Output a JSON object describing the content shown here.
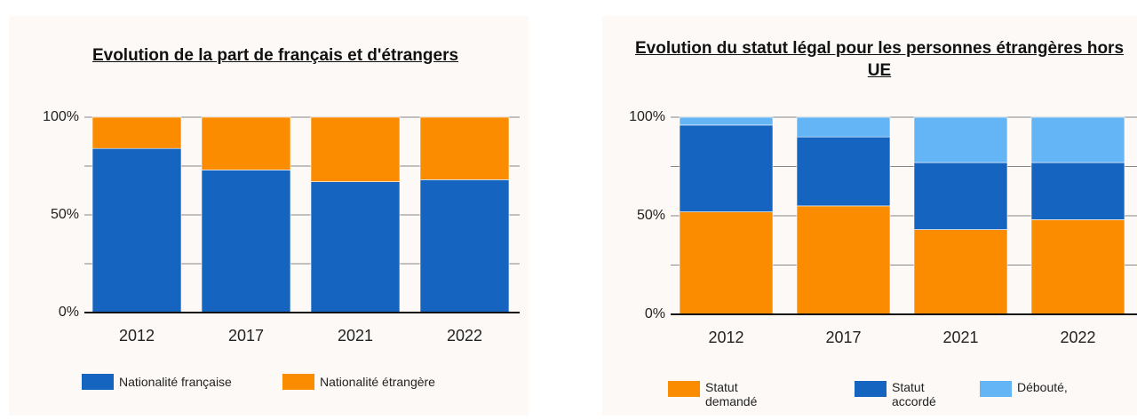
{
  "chart_data": [
    {
      "type": "stacked_bar",
      "title": "Evolution de la part de français et d'étrangers",
      "categories": [
        "2012",
        "2017",
        "2021",
        "2022"
      ],
      "series": [
        {
          "name": "Nationalité française",
          "color": "#1565c0",
          "values": [
            84,
            73,
            67,
            68
          ]
        },
        {
          "name": "Nationalité étrangère",
          "color": "#fb8c00",
          "values": [
            16,
            27,
            33,
            32
          ]
        }
      ],
      "ylim": [
        0,
        100
      ],
      "yticks": [
        {
          "value": 0,
          "label": "0%"
        },
        {
          "value": 50,
          "label": "50%"
        },
        {
          "value": 100,
          "label": "100%"
        }
      ],
      "minor_grid": [
        25,
        75
      ],
      "grid": true,
      "legend": "bottom"
    },
    {
      "type": "stacked_bar",
      "title": "Evolution du statut légal pour les personnes étrangères hors UE",
      "categories": [
        "2012",
        "2017",
        "2021",
        "2022"
      ],
      "series": [
        {
          "name": "Statut demandé",
          "color": "#fb8c00",
          "values": [
            52,
            55,
            43,
            48
          ]
        },
        {
          "name": "Statut accordé",
          "color": "#1565c0",
          "values": [
            44,
            35,
            34,
            29
          ]
        },
        {
          "name": "Débouté,",
          "color": "#64b5f6",
          "values": [
            4,
            10,
            23,
            23
          ]
        }
      ],
      "ylim": [
        0,
        100
      ],
      "yticks": [
        {
          "value": 0,
          "label": "0%"
        },
        {
          "value": 50,
          "label": "50%"
        },
        {
          "value": 100,
          "label": "100%"
        }
      ],
      "minor_grid": [
        25,
        75
      ],
      "grid": true,
      "legend": "bottom"
    }
  ]
}
